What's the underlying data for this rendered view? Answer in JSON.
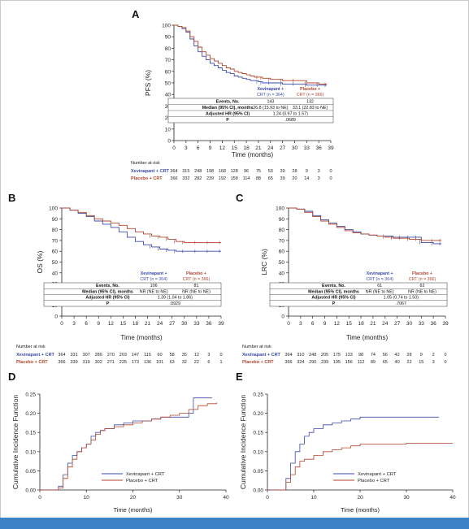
{
  "colors": {
    "xevinapant": "#3a4ba8",
    "placebo": "#b0452c",
    "axis": "#222222",
    "bottom_bar": "#3d82c4"
  },
  "common": {
    "x_label": "Time (months)",
    "number_at_risk_label": "Number at risk",
    "ticks_39": [
      "0",
      "3",
      "6",
      "9",
      "12",
      "15",
      "18",
      "21",
      "24",
      "27",
      "30",
      "33",
      "36",
      "39"
    ],
    "ticks_100": [
      "0",
      "10",
      "20",
      "30",
      "40",
      "50",
      "60",
      "70",
      "80",
      "90",
      "100"
    ],
    "ticks_cif": [
      "0.00",
      "0.05",
      "0.10",
      "0.15",
      "0.20",
      "0.25"
    ],
    "ticks_40": [
      "0",
      "10",
      "20",
      "30",
      "40"
    ]
  },
  "chart_data": [
    {
      "panel": "A",
      "type": "line",
      "ylabel": "PFS (%)",
      "xlabel": "Time (months)",
      "xlim": [
        0,
        39
      ],
      "ylim": [
        0,
        100
      ],
      "series": [
        {
          "name": "Xevinapant + CRT (n = 364)",
          "x": [
            0,
            1,
            2,
            3,
            4,
            5,
            6,
            7,
            8,
            9,
            10,
            11,
            12,
            13,
            14,
            15,
            16,
            17,
            18,
            19,
            20,
            21,
            22,
            24,
            27,
            30,
            33,
            36,
            38
          ],
          "y": [
            100,
            99,
            97,
            94,
            88,
            82,
            77,
            73,
            70,
            67,
            65,
            63,
            61,
            59,
            58,
            56,
            55,
            54,
            53,
            52,
            52,
            51,
            50,
            50,
            49,
            49,
            48,
            48,
            48
          ]
        },
        {
          "name": "Placebo + CRT (n = 366)",
          "x": [
            0,
            1,
            2,
            3,
            4,
            5,
            6,
            7,
            8,
            9,
            10,
            11,
            12,
            13,
            14,
            15,
            16,
            17,
            18,
            19,
            20,
            21,
            22,
            24,
            27,
            30,
            33,
            36,
            38
          ],
          "y": [
            100,
            99,
            98,
            95,
            90,
            86,
            81,
            77,
            74,
            71,
            69,
            67,
            65,
            63,
            62,
            60,
            59,
            58,
            57,
            56,
            55,
            55,
            54,
            53,
            52,
            52,
            50,
            49,
            49
          ]
        }
      ],
      "table": {
        "col_headers": [
          "Xevinapant +",
          "CRT (n = 364)",
          "Placebo +",
          "CRT (n = 366)"
        ],
        "rows": [
          {
            "label": "Events, No.",
            "xev": "143",
            "pla": "132"
          },
          {
            "label": "Median (95% CI), months",
            "xev": "26.8 (15.93 to NE)",
            "pla": "33.1 (22.83 to NE)"
          },
          {
            "label": "Adjusted HR (95% CI)",
            "both": "1.24 (0.97 to 1.57)"
          },
          {
            "label": "P",
            "both": ".0689"
          }
        ]
      },
      "at_risk": {
        "Xevinapant + CRT": [
          "364",
          "315",
          "248",
          "198",
          "168",
          "128",
          "96",
          "75",
          "53",
          "39",
          "28",
          "9",
          "3",
          "0"
        ],
        "Placebo + CRT": [
          "366",
          "332",
          "282",
          "239",
          "192",
          "158",
          "114",
          "88",
          "65",
          "39",
          "20",
          "14",
          "3",
          "0"
        ]
      }
    },
    {
      "panel": "B",
      "type": "line",
      "ylabel": "OS (%)",
      "xlabel": "Time (months)",
      "xlim": [
        0,
        39
      ],
      "ylim": [
        0,
        100
      ],
      "series": [
        {
          "name": "Xevinapant + CRT (n = 364)",
          "x": [
            0,
            2,
            4,
            6,
            8,
            10,
            12,
            14,
            16,
            18,
            20,
            22,
            24,
            26,
            28,
            30,
            33,
            36,
            39
          ],
          "y": [
            100,
            98,
            95,
            92,
            88,
            85,
            82,
            78,
            73,
            69,
            66,
            64,
            62,
            61,
            60,
            60,
            60,
            60,
            60
          ]
        },
        {
          "name": "Placebo + CRT (n = 366)",
          "x": [
            0,
            2,
            4,
            6,
            8,
            10,
            12,
            14,
            16,
            18,
            20,
            22,
            24,
            26,
            28,
            30,
            33,
            36,
            39
          ],
          "y": [
            100,
            98,
            96,
            93,
            90,
            88,
            86,
            84,
            81,
            78,
            76,
            74,
            73,
            71,
            69,
            68,
            68,
            68,
            68
          ]
        }
      ],
      "table": {
        "col_headers": [
          "Xevinapant +",
          "CRT (n = 364)",
          "Placebo +",
          "CRT (n = 366)"
        ],
        "rows": [
          {
            "label": "Events, No.",
            "xev": "106",
            "pla": "81"
          },
          {
            "label": "Median (95% CI), months",
            "xev": "NR (NE to NE)",
            "pla": "NR (NE to NE)"
          },
          {
            "label": "Adjusted HR (95% CI)",
            "both": "1.39 (1.04 to 1.86)"
          },
          {
            "label": "P",
            "both": ".0929"
          }
        ]
      },
      "at_risk": {
        "Xevinapant + CRT": [
          "364",
          "331",
          "307",
          "286",
          "270",
          "203",
          "147",
          "115",
          "60",
          "58",
          "35",
          "12",
          "3",
          "0"
        ],
        "Placebo + CRT": [
          "366",
          "339",
          "319",
          "302",
          "271",
          "225",
          "173",
          "136",
          "101",
          "63",
          "32",
          "22",
          "6",
          "1"
        ]
      }
    },
    {
      "panel": "C",
      "type": "line",
      "ylabel": "LRC (%)",
      "xlabel": "Time (months)",
      "xlim": [
        0,
        39
      ],
      "ylim": [
        0,
        100
      ],
      "series": [
        {
          "name": "Xevinapant + CRT (n = 364)",
          "x": [
            0,
            2,
            4,
            6,
            8,
            10,
            12,
            14,
            16,
            18,
            20,
            22,
            24,
            26,
            28,
            30,
            32,
            33,
            36,
            38
          ],
          "y": [
            100,
            99,
            97,
            93,
            89,
            86,
            83,
            80,
            78,
            76,
            75,
            74,
            74,
            73,
            73,
            73,
            73,
            68,
            67,
            67
          ]
        },
        {
          "name": "Placebo + CRT (n = 366)",
          "x": [
            0,
            2,
            4,
            6,
            8,
            10,
            12,
            14,
            16,
            18,
            20,
            22,
            24,
            26,
            28,
            30,
            32,
            33,
            36,
            38
          ],
          "y": [
            100,
            99,
            96,
            92,
            88,
            85,
            82,
            79,
            77,
            76,
            75,
            74,
            73,
            72,
            72,
            71,
            71,
            70,
            70,
            70
          ]
        }
      ],
      "table": {
        "col_headers": [
          "Xevinapant +",
          "CRT (n = 364)",
          "Placebo +",
          "CRT (n = 366)"
        ],
        "rows": [
          {
            "label": "Events, No.",
            "xev": "61",
            "pla": "62"
          },
          {
            "label": "Median (95% CI), months",
            "xev": "NR (NE to NE)",
            "pla": "NR (NE to NE)"
          },
          {
            "label": "Adjusted HR (95% CI)",
            "both": "1.05 (0.74 to 1.50)"
          },
          {
            "label": "P",
            "both": ".7067"
          }
        ]
      },
      "at_risk": {
        "Xevinapant + CRT": [
          "364",
          "310",
          "248",
          "205",
          "175",
          "133",
          "98",
          "74",
          "56",
          "42",
          "28",
          "9",
          "2",
          "0"
        ],
        "Placebo + CRT": [
          "366",
          "324",
          "290",
          "239",
          "195",
          "156",
          "112",
          "89",
          "65",
          "40",
          "22",
          "15",
          "3",
          "0"
        ]
      }
    },
    {
      "panel": "D",
      "type": "line",
      "ylabel": "Cumulative Incidence Function",
      "xlabel": "Time (months)",
      "xlim": [
        0,
        40
      ],
      "ylim": [
        0,
        0.25
      ],
      "legend": [
        "Xevinapant + CRT",
        "Placebo + CRT"
      ],
      "series": [
        {
          "name": "Xevinapant + CRT",
          "x": [
            0,
            3,
            4,
            5,
            6,
            7,
            8,
            9,
            10,
            11,
            12,
            13,
            14,
            16,
            18,
            20,
            22,
            24,
            26,
            28,
            30,
            32,
            33,
            36,
            37
          ],
          "y": [
            0,
            0,
            0.01,
            0.04,
            0.07,
            0.09,
            0.1,
            0.11,
            0.12,
            0.14,
            0.15,
            0.155,
            0.16,
            0.17,
            0.175,
            0.18,
            0.18,
            0.185,
            0.19,
            0.19,
            0.19,
            0.2,
            0.24,
            0.24,
            0.24
          ]
        },
        {
          "name": "Placebo + CRT",
          "x": [
            0,
            3,
            4,
            5,
            6,
            7,
            8,
            9,
            10,
            11,
            12,
            13,
            14,
            16,
            18,
            20,
            22,
            24,
            26,
            28,
            30,
            32,
            34,
            36,
            38
          ],
          "y": [
            0,
            0,
            0.005,
            0.03,
            0.06,
            0.08,
            0.1,
            0.11,
            0.12,
            0.13,
            0.145,
            0.155,
            0.16,
            0.165,
            0.17,
            0.175,
            0.18,
            0.185,
            0.19,
            0.195,
            0.2,
            0.21,
            0.22,
            0.225,
            0.228
          ]
        }
      ]
    },
    {
      "panel": "E",
      "type": "line",
      "ylabel": "Cumulative Incidence Function",
      "xlabel": "Time (months)",
      "xlim": [
        0,
        40
      ],
      "ylim": [
        0,
        0.25
      ],
      "legend": [
        "Xevinapant + CRT",
        "Placebo + CRT"
      ],
      "series": [
        {
          "name": "Xevinapant + CRT",
          "x": [
            0,
            3,
            4,
            5,
            6,
            7,
            8,
            9,
            10,
            12,
            14,
            16,
            18,
            20,
            25,
            30,
            37
          ],
          "y": [
            0,
            0,
            0.03,
            0.07,
            0.1,
            0.12,
            0.14,
            0.15,
            0.16,
            0.17,
            0.175,
            0.18,
            0.185,
            0.19,
            0.19,
            0.19,
            0.19
          ]
        },
        {
          "name": "Placebo + CRT",
          "x": [
            0,
            3,
            4,
            5,
            6,
            7,
            8,
            10,
            12,
            14,
            16,
            18,
            20,
            25,
            30,
            35,
            40
          ],
          "y": [
            0,
            0,
            0.02,
            0.04,
            0.06,
            0.075,
            0.08,
            0.09,
            0.1,
            0.105,
            0.11,
            0.115,
            0.12,
            0.12,
            0.122,
            0.122,
            0.122
          ]
        }
      ]
    }
  ]
}
